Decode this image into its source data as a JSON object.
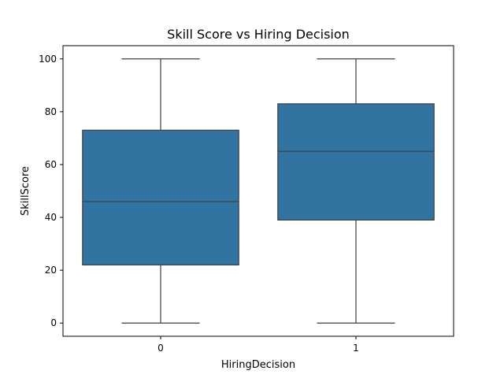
{
  "chart_data": {
    "type": "box",
    "title": "Skill Score vs Hiring Decision",
    "xlabel": "HiringDecision",
    "ylabel": "SkillScore",
    "categories": [
      "0",
      "1"
    ],
    "boxes": [
      {
        "category": "0",
        "min": 0,
        "q1": 22,
        "median": 46,
        "q3": 73,
        "max": 100
      },
      {
        "category": "1",
        "min": 0,
        "q1": 39,
        "median": 65,
        "q3": 83,
        "max": 100
      }
    ],
    "ylim": [
      -5,
      105
    ],
    "yticks": [
      0,
      20,
      40,
      60,
      80,
      100
    ],
    "box_color": "#3274a1",
    "line_color": "#3f3f3f",
    "grid": false,
    "legend": "none"
  }
}
